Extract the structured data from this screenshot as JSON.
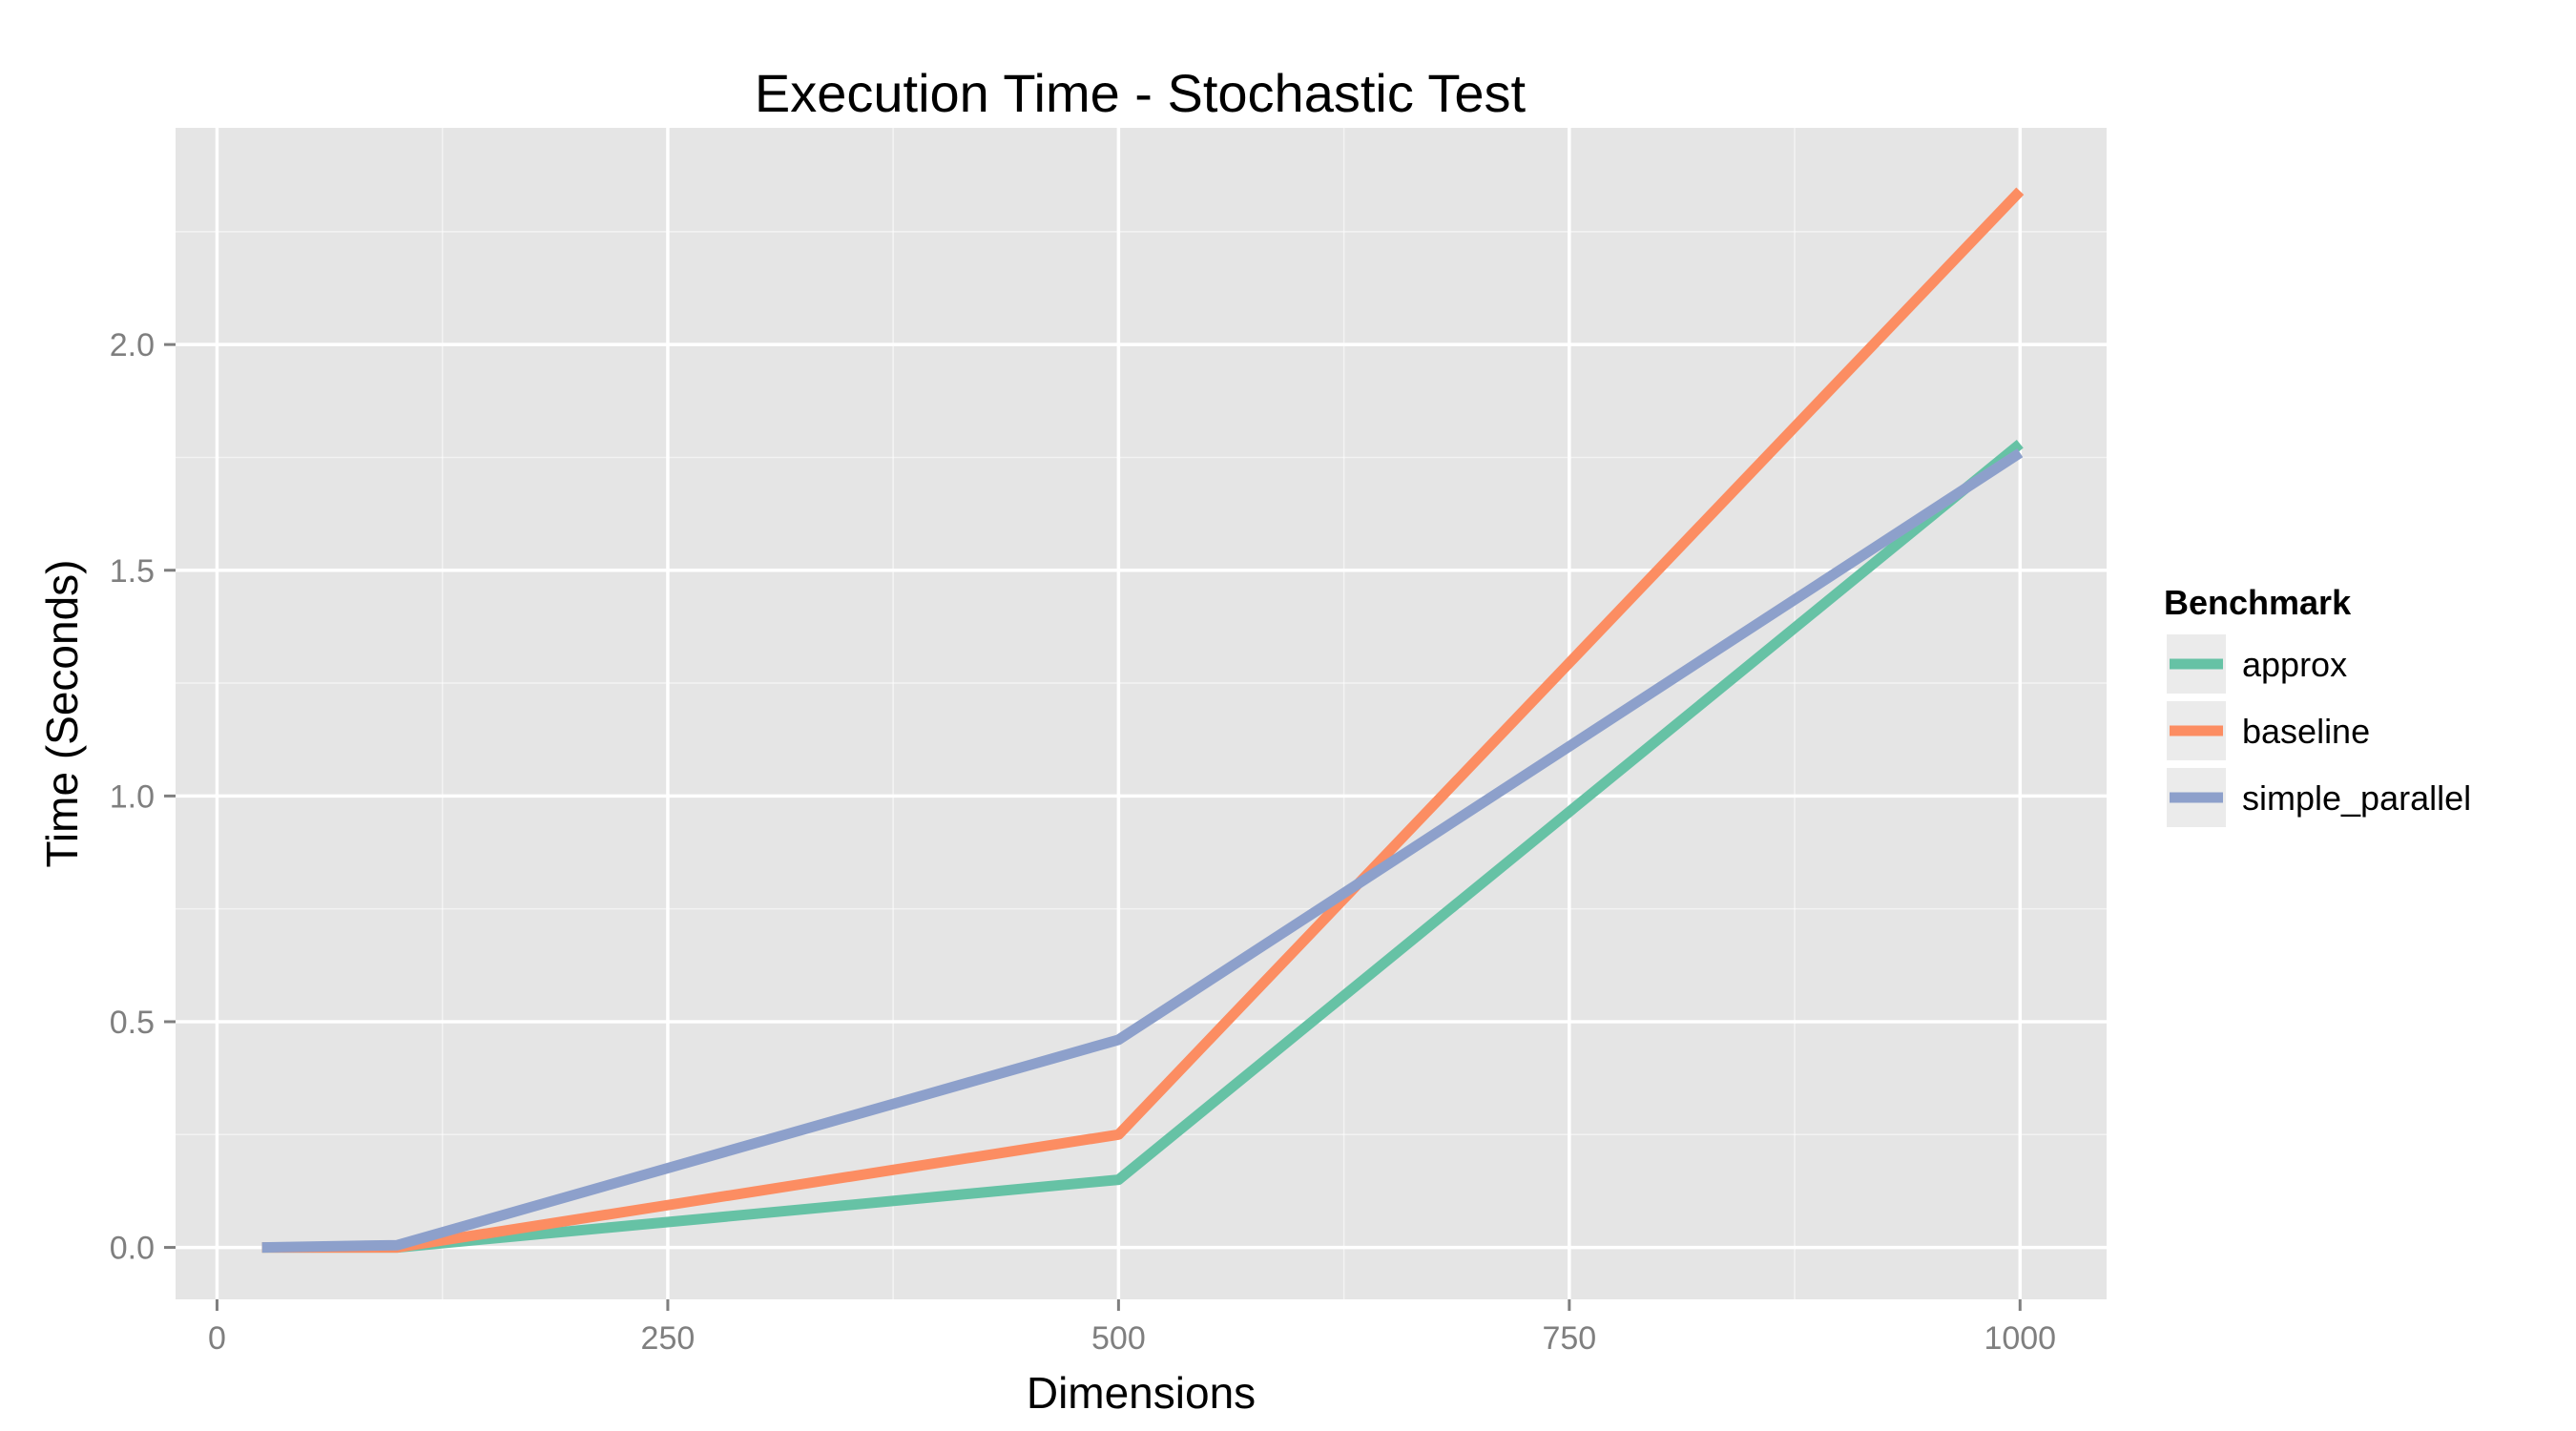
{
  "chart_data": {
    "type": "line",
    "title": "Execution Time - Stochastic Test",
    "xlabel": "Dimensions",
    "ylabel": "Time (Seconds)",
    "xlim": [
      -23,
      1048
    ],
    "ylim": [
      -0.115,
      2.48
    ],
    "x_ticks": [
      0,
      250,
      500,
      750,
      1000
    ],
    "x_tick_labels": [
      "0",
      "250",
      "500",
      "750",
      "1000"
    ],
    "y_ticks": [
      0.0,
      0.5,
      1.0,
      1.5,
      2.0
    ],
    "y_tick_labels": [
      "0.0",
      "0.5",
      "1.0",
      "1.5",
      "2.0"
    ],
    "grid": true,
    "legend_position": "right",
    "legend_title": "Benchmark",
    "background_color": "#e5e5e5",
    "grid_color": "#ffffff",
    "x": [
      25,
      100,
      500,
      1000
    ],
    "series": [
      {
        "name": "approx",
        "color": "#66c2a5",
        "values": [
          0.0,
          0.0,
          0.15,
          1.78
        ]
      },
      {
        "name": "baseline",
        "color": "#fc8d62",
        "values": [
          0.0,
          0.0,
          0.25,
          2.34
        ]
      },
      {
        "name": "simple_parallel",
        "color": "#8da0cb",
        "values": [
          0.0,
          0.005,
          0.46,
          1.76
        ]
      }
    ]
  }
}
